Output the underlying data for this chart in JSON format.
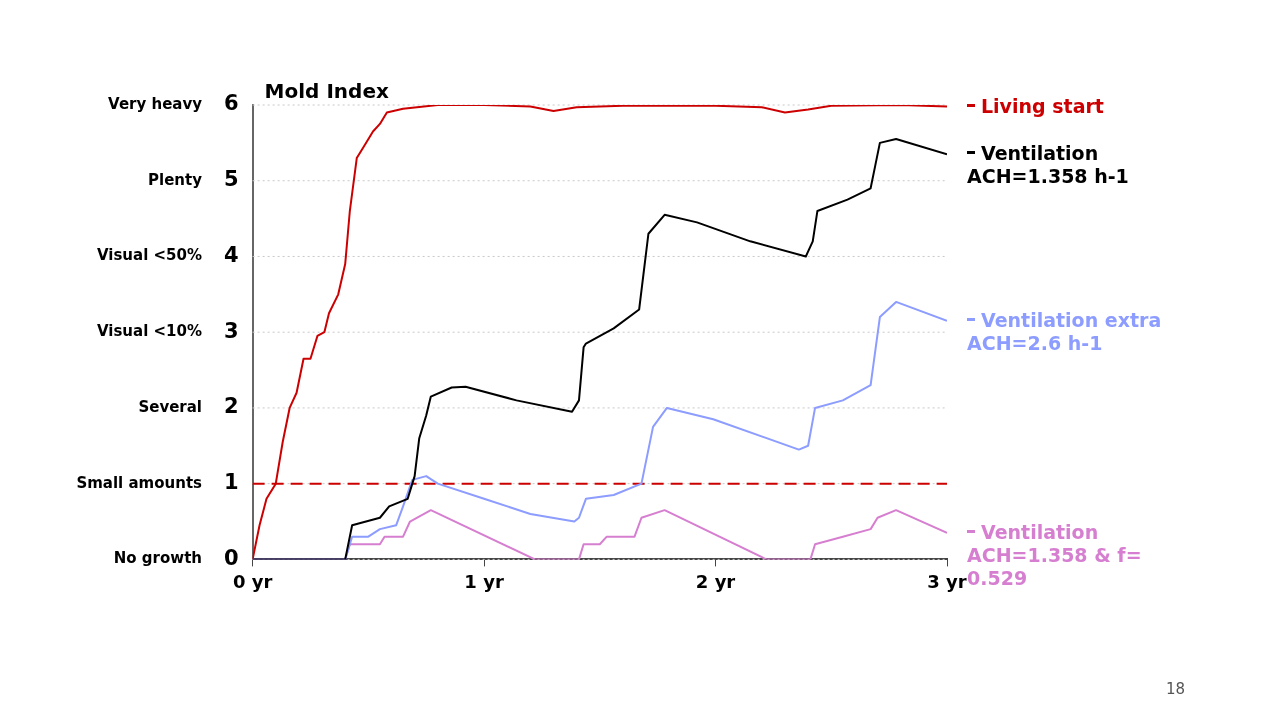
{
  "chart_data": {
    "type": "line",
    "title": "Mold Index",
    "xlim": [
      0,
      3
    ],
    "xticks": [
      {
        "value": 0,
        "label": "0 yr"
      },
      {
        "value": 1,
        "label": "1 yr"
      },
      {
        "value": 2,
        "label": "2 yr"
      },
      {
        "value": 3,
        "label": "3 yr"
      }
    ],
    "ylim": [
      0,
      6
    ],
    "yticks": [
      0,
      1,
      2,
      3,
      4,
      5,
      6
    ],
    "grid": "y",
    "legend": "right",
    "marker": "none",
    "line_style": "solid",
    "ref_lines": [
      {
        "axis": "y",
        "value": 1,
        "color": "#cc0000",
        "line_style": "dashed"
      }
    ],
    "annotations": [
      "No growth",
      "Small amounts",
      "Several",
      "Visual <10%",
      "Visual <50%",
      "Plenty",
      "Very heavy",
      "18"
    ],
    "series": [
      {
        "name": "Living start",
        "color": "#cc0000",
        "x": [
          0,
          0.03,
          0.06,
          0.1,
          0.13,
          0.16,
          0.19,
          0.22,
          0.25,
          0.28,
          0.31,
          0.33,
          0.37,
          0.4,
          0.42,
          0.45,
          0.48,
          0.52,
          0.55,
          0.58,
          0.65,
          0.8,
          1.0,
          1.2,
          1.3,
          1.4,
          1.6,
          2.0,
          2.2,
          2.3,
          2.4,
          2.5,
          2.8,
          3
        ],
        "values": [
          0,
          0.45,
          0.8,
          1.0,
          1.55,
          2.0,
          2.2,
          2.65,
          2.65,
          2.95,
          3.0,
          3.25,
          3.5,
          3.9,
          4.6,
          5.3,
          5.45,
          5.65,
          5.75,
          5.9,
          5.95,
          6,
          6,
          5.98,
          5.92,
          5.97,
          5.99,
          5.99,
          5.97,
          5.9,
          5.94,
          5.99,
          6,
          5.98
        ]
      },
      {
        "name": "Ventilation ACH=1.358 h-1",
        "color": "#000000",
        "x": [
          0,
          0.4,
          0.43,
          0.55,
          0.59,
          0.67,
          0.7,
          0.72,
          0.75,
          0.77,
          0.86,
          0.92,
          1.14,
          1.38,
          1.41,
          1.43,
          1.44,
          1.56,
          1.67,
          1.71,
          1.78,
          1.92,
          2.15,
          2.39,
          2.42,
          2.44,
          2.57,
          2.67,
          2.69,
          2.71,
          2.78,
          3
        ],
        "values": [
          0,
          0,
          0.45,
          0.55,
          0.7,
          0.8,
          1.1,
          1.6,
          1.9,
          2.15,
          2.27,
          2.28,
          2.1,
          1.95,
          2.1,
          2.8,
          2.85,
          3.05,
          3.3,
          4.3,
          4.55,
          4.45,
          4.2,
          4.0,
          4.2,
          4.6,
          4.75,
          4.9,
          5.2,
          5.5,
          5.55,
          5.35
        ]
      },
      {
        "name": "Ventilation extra ACH=2.6 h-1",
        "color": "#8c9cff",
        "x": [
          0,
          0.4,
          0.43,
          0.5,
          0.55,
          0.62,
          0.65,
          0.69,
          0.75,
          0.8,
          1.0,
          1.2,
          1.39,
          1.41,
          1.44,
          1.56,
          1.68,
          1.73,
          1.79,
          1.99,
          2.36,
          2.4,
          2.43,
          2.55,
          2.67,
          2.71,
          2.78,
          3
        ],
        "values": [
          0,
          0,
          0.3,
          0.3,
          0.4,
          0.45,
          0.7,
          1.05,
          1.1,
          1.0,
          0.8,
          0.6,
          0.5,
          0.55,
          0.8,
          0.85,
          1.0,
          1.75,
          2.0,
          1.85,
          1.45,
          1.5,
          2.0,
          2.1,
          2.3,
          3.2,
          3.4,
          3.15
        ]
      },
      {
        "name": "Ventilation ACH=1.358 & f= 0.529",
        "color": "#d67fd0",
        "x": [
          0,
          0.4,
          0.42,
          0.55,
          0.57,
          0.65,
          0.68,
          0.77,
          1.22,
          1.41,
          1.43,
          1.5,
          1.53,
          1.65,
          1.68,
          1.78,
          2.22,
          2.41,
          2.43,
          2.55,
          2.67,
          2.7,
          2.78,
          3
        ],
        "values": [
          0,
          0,
          0.2,
          0.2,
          0.3,
          0.3,
          0.5,
          0.65,
          0,
          0,
          0.2,
          0.2,
          0.3,
          0.3,
          0.55,
          0.65,
          0,
          0,
          0.2,
          0.3,
          0.4,
          0.55,
          0.65,
          0.35
        ]
      }
    ]
  }
}
